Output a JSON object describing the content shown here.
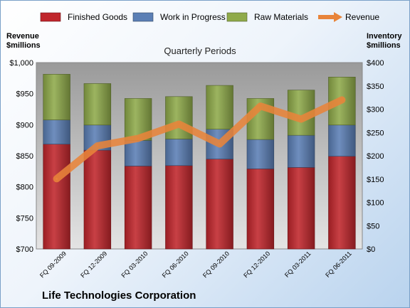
{
  "chart_data": {
    "type": "bar",
    "stacked": true,
    "title": "Quarterly Periods",
    "footer_title": "Life Technologies Corporation",
    "ylabel_left": [
      "Revenue",
      "$millions"
    ],
    "ylabel_right": [
      "Inventory",
      "$millions"
    ],
    "categories": [
      "FQ 09-2009",
      "FQ 12-2009",
      "FQ 03-2010",
      "FQ 06-2010",
      "FQ 09-2010",
      "FQ 12-2010",
      "FQ 03-2011",
      "FQ 06-2011"
    ],
    "ylim_left": [
      700,
      1000
    ],
    "yticks_left": [
      "$700",
      "$750",
      "$800",
      "$850",
      "$900",
      "$950",
      "$1,000"
    ],
    "ylim_right": [
      0,
      400
    ],
    "yticks_right": [
      "$0",
      "$50",
      "$100",
      "$150",
      "$200",
      "$250",
      "$300",
      "$350",
      "$400"
    ],
    "series": [
      {
        "name": "Finished Goods",
        "axis": "right",
        "color": "#c0262c",
        "values": [
          225,
          212,
          178,
          179,
          193,
          172,
          175,
          199
        ]
      },
      {
        "name": "Work in Progress",
        "axis": "right",
        "color": "#5b7fb5",
        "values": [
          52,
          54,
          55,
          57,
          64,
          63,
          69,
          67
        ]
      },
      {
        "name": "Raw Materials",
        "axis": "right",
        "color": "#8faa4a",
        "values": [
          98,
          89,
          90,
          91,
          94,
          88,
          97,
          103
        ]
      },
      {
        "name": "Revenue",
        "axis": "left",
        "type": "line",
        "color": "#e8843a",
        "values": [
          813,
          866,
          878,
          901,
          869,
          930,
          909,
          940
        ]
      }
    ],
    "legend_position": "top",
    "grid": false
  }
}
